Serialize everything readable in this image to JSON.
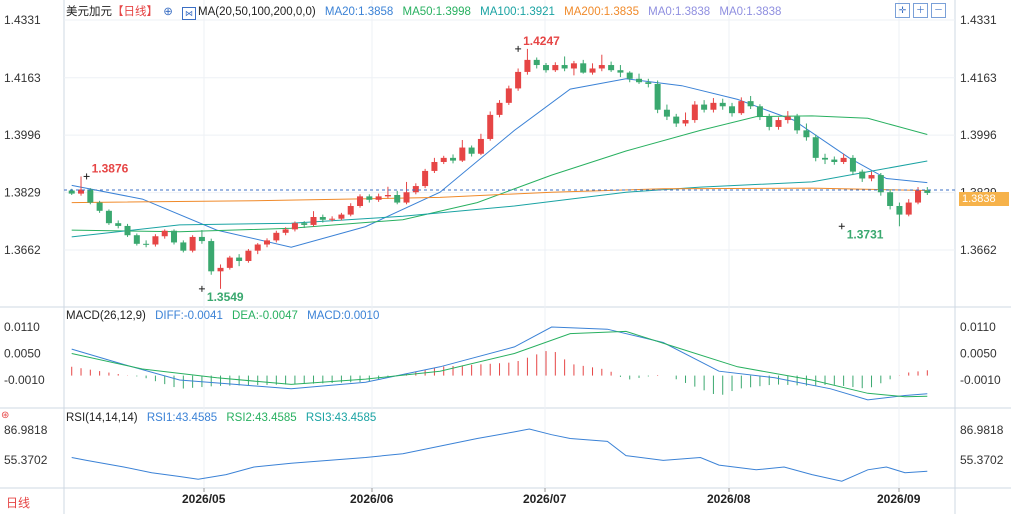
{
  "price_legend": {
    "symbol": "美元加元",
    "period": "【日线】",
    "ma_params": "MA(20,50,100,200,0,0)",
    "ma20": "MA20:1.3858",
    "ma50": "MA50:1.3998",
    "ma100": "MA100:1.3921",
    "ma200": "MA200:1.3835",
    "ma0a": "MA0:1.3838",
    "ma0b": "MA0:1.3838"
  },
  "macd_legend": {
    "label": "MACD(26,12,9)",
    "diff": "DIFF:-0.0041",
    "dea": "DEA:-0.0047",
    "macd": "MACD:0.0010"
  },
  "rsi_legend": {
    "label": "RSI(14,14,14)",
    "rsi1": "RSI1:43.4585",
    "rsi2": "RSI2:43.4585",
    "rsi3": "RSI3:43.4585"
  },
  "current_price": "1.3838",
  "period_tab": "日线",
  "colors": {
    "up": "#e64545",
    "down": "#3aa86f",
    "ma20": "#3b82d6",
    "ma50": "#28b060",
    "ma100": "#1aa3a3",
    "ma200": "#f08a2a",
    "diff": "#3b82d6",
    "dea": "#28b060",
    "legend_ma0": "#8f8fe0"
  },
  "chart_data": {
    "type": "candlestick",
    "x_tick_labels": [
      "2026/05",
      "2026/06",
      "2026/07",
      "2026/08",
      "2026/09"
    ],
    "price_axis": {
      "ticks": [
        "1.4331",
        "1.4163",
        "1.3996",
        "1.3829",
        "1.3662"
      ],
      "range": [
        1.355,
        1.433
      ]
    },
    "annotations": [
      {
        "label": "1.3876",
        "price": 1.3876,
        "kind": "high",
        "index": 10
      },
      {
        "label": "1.3549",
        "price": 1.3549,
        "kind": "low",
        "index": 72
      },
      {
        "label": "1.4247",
        "price": 1.4247,
        "kind": "high",
        "index": 242
      },
      {
        "label": "1.3731",
        "price": 1.3731,
        "kind": "low",
        "index": 416
      }
    ],
    "candle_x": [
      2,
      7,
      12,
      17,
      22,
      27,
      32,
      37,
      42,
      47,
      52,
      57,
      62,
      67,
      72,
      77,
      82,
      87,
      92,
      97,
      102,
      107,
      112,
      117,
      122,
      127,
      132,
      137,
      142,
      147,
      152,
      157,
      162,
      167,
      172,
      177,
      182,
      187,
      192,
      197,
      202,
      207,
      212,
      217,
      222,
      227,
      232,
      237,
      242,
      247,
      252,
      257,
      262,
      267,
      272,
      277,
      282,
      287,
      292,
      297,
      302,
      307,
      312,
      317,
      322,
      327,
      332,
      337,
      342,
      347,
      352,
      357,
      362,
      367,
      372,
      377,
      382,
      387,
      392,
      397,
      402,
      407,
      412,
      417,
      422,
      427,
      432,
      437,
      442,
      447,
      452,
      457,
      462
    ],
    "candles": [
      [
        1.3835,
        1.3826,
        1.384,
        1.3822
      ],
      [
        1.3826,
        1.3838,
        1.3876,
        1.382
      ],
      [
        1.3838,
        1.38,
        1.3842,
        1.3795
      ],
      [
        1.38,
        1.3776,
        1.3805,
        1.377
      ],
      [
        1.3776,
        1.374,
        1.378,
        1.3735
      ],
      [
        1.374,
        1.3732,
        1.3748,
        1.3725
      ],
      [
        1.3732,
        1.3705,
        1.3738,
        1.37
      ],
      [
        1.3705,
        1.368,
        1.371,
        1.3675
      ],
      [
        1.368,
        1.3678,
        1.369,
        1.367
      ],
      [
        1.3678,
        1.3702,
        1.3708,
        1.3672
      ],
      [
        1.3702,
        1.3718,
        1.3722,
        1.3695
      ],
      [
        1.3718,
        1.3684,
        1.3722,
        1.3678
      ],
      [
        1.3684,
        1.366,
        1.369,
        1.3655
      ],
      [
        1.366,
        1.37,
        1.3705,
        1.3655
      ],
      [
        1.37,
        1.3688,
        1.372,
        1.368
      ],
      [
        1.3688,
        1.36,
        1.3695,
        1.359
      ],
      [
        1.36,
        1.361,
        1.362,
        1.3549
      ],
      [
        1.361,
        1.364,
        1.3645,
        1.3605
      ],
      [
        1.364,
        1.363,
        1.365,
        1.3615
      ],
      [
        1.363,
        1.366,
        1.3665,
        1.3625
      ],
      [
        1.366,
        1.3678,
        1.3682,
        1.365
      ],
      [
        1.3678,
        1.369,
        1.3696,
        1.367
      ],
      [
        1.369,
        1.3712,
        1.3718,
        1.3684
      ],
      [
        1.3712,
        1.3722,
        1.3728,
        1.3705
      ],
      [
        1.3722,
        1.374,
        1.3745,
        1.3716
      ],
      [
        1.374,
        1.3735,
        1.3746,
        1.3726
      ],
      [
        1.3735,
        1.3758,
        1.3775,
        1.373
      ],
      [
        1.3758,
        1.375,
        1.3765,
        1.3742
      ],
      [
        1.375,
        1.3753,
        1.376,
        1.3745
      ],
      [
        1.3753,
        1.3765,
        1.377,
        1.3748
      ],
      [
        1.3765,
        1.379,
        1.3798,
        1.376
      ],
      [
        1.379,
        1.3818,
        1.3824,
        1.3785
      ],
      [
        1.3818,
        1.3808,
        1.3824,
        1.38
      ],
      [
        1.3808,
        1.3818,
        1.3826,
        1.3802
      ],
      [
        1.3818,
        1.3822,
        1.3846,
        1.3812
      ],
      [
        1.3822,
        1.38,
        1.3834,
        1.3795
      ],
      [
        1.38,
        1.383,
        1.386,
        1.3795
      ],
      [
        1.383,
        1.3848,
        1.3856,
        1.3824
      ],
      [
        1.3848,
        1.3892,
        1.3898,
        1.3842
      ],
      [
        1.3892,
        1.3918,
        1.393,
        1.3886
      ],
      [
        1.3918,
        1.393,
        1.3936,
        1.3912
      ],
      [
        1.393,
        1.3922,
        1.394,
        1.3914
      ],
      [
        1.3922,
        1.396,
        1.3982,
        1.3918
      ],
      [
        1.396,
        1.3942,
        1.3966,
        1.3934
      ],
      [
        1.3942,
        1.3985,
        1.4,
        1.3938
      ],
      [
        1.3985,
        1.4055,
        1.4065,
        1.398
      ],
      [
        1.4055,
        1.409,
        1.4098,
        1.4048
      ],
      [
        1.409,
        1.4132,
        1.414,
        1.4084
      ],
      [
        1.4132,
        1.418,
        1.419,
        1.4125
      ],
      [
        1.418,
        1.4215,
        1.4247,
        1.4172
      ],
      [
        1.4215,
        1.42,
        1.4222,
        1.419
      ],
      [
        1.42,
        1.4185,
        1.4206,
        1.4178
      ],
      [
        1.4185,
        1.42,
        1.4208,
        1.418
      ],
      [
        1.42,
        1.419,
        1.4225,
        1.4182
      ],
      [
        1.419,
        1.4205,
        1.4212,
        1.417
      ],
      [
        1.4205,
        1.4178,
        1.4215,
        1.4175
      ],
      [
        1.4178,
        1.419,
        1.4205,
        1.4172
      ],
      [
        1.419,
        1.42,
        1.423,
        1.4182
      ],
      [
        1.42,
        1.4185,
        1.421,
        1.418
      ],
      [
        1.4185,
        1.4178,
        1.42,
        1.4165
      ],
      [
        1.4178,
        1.416,
        1.4182,
        1.415
      ],
      [
        1.416,
        1.415,
        1.4175,
        1.4145
      ],
      [
        1.415,
        1.4145,
        1.416,
        1.4135
      ],
      [
        1.4145,
        1.407,
        1.4155,
        1.406
      ],
      [
        1.407,
        1.405,
        1.4085,
        1.404
      ],
      [
        1.405,
        1.403,
        1.4058,
        1.402
      ],
      [
        1.403,
        1.404,
        1.4062,
        1.4022
      ],
      [
        1.404,
        1.4085,
        1.4095,
        1.4032
      ],
      [
        1.4085,
        1.407,
        1.4098,
        1.4062
      ],
      [
        1.407,
        1.409,
        1.4104,
        1.4062
      ],
      [
        1.409,
        1.408,
        1.4102,
        1.407
      ],
      [
        1.408,
        1.406,
        1.409,
        1.405
      ],
      [
        1.406,
        1.4095,
        1.4106,
        1.4055
      ],
      [
        1.4095,
        1.408,
        1.411,
        1.4072
      ],
      [
        1.408,
        1.405,
        1.4086,
        1.404
      ],
      [
        1.405,
        1.402,
        1.4058,
        1.401
      ],
      [
        1.402,
        1.404,
        1.4048,
        1.4012
      ],
      [
        1.404,
        1.405,
        1.4066,
        1.403
      ],
      [
        1.405,
        1.401,
        1.4058,
        1.4
      ],
      [
        1.401,
        1.399,
        1.403,
        1.398
      ],
      [
        1.399,
        1.393,
        1.3998,
        1.392
      ],
      [
        1.393,
        1.3925,
        1.3942,
        1.3912
      ],
      [
        1.3925,
        1.3918,
        1.3934,
        1.391
      ],
      [
        1.3918,
        1.393,
        1.3942,
        1.3912
      ],
      [
        1.393,
        1.389,
        1.3938,
        1.388
      ],
      [
        1.389,
        1.387,
        1.3896,
        1.386
      ],
      [
        1.387,
        1.388,
        1.389,
        1.3862
      ],
      [
        1.388,
        1.383,
        1.3886,
        1.382
      ],
      [
        1.383,
        1.379,
        1.3838,
        1.378
      ],
      [
        1.379,
        1.3765,
        1.38,
        1.3731
      ],
      [
        1.3765,
        1.38,
        1.381,
        1.376
      ],
      [
        1.38,
        1.3835,
        1.3845,
        1.3795
      ],
      [
        1.3835,
        1.3828,
        1.3845,
        1.3822
      ]
    ],
    "ma_overlays_price_units": {
      "ma20": [
        [
          2,
          1.385
        ],
        [
          40,
          1.381
        ],
        [
          80,
          1.372
        ],
        [
          120,
          1.367
        ],
        [
          160,
          1.373
        ],
        [
          200,
          1.383
        ],
        [
          240,
          1.401
        ],
        [
          270,
          1.413
        ],
        [
          300,
          1.416
        ],
        [
          330,
          1.414
        ],
        [
          360,
          1.41
        ],
        [
          390,
          1.404
        ],
        [
          420,
          1.393
        ],
        [
          440,
          1.387
        ],
        [
          462,
          1.3858
        ]
      ],
      "ma50": [
        [
          2,
          1.372
        ],
        [
          60,
          1.3715
        ],
        [
          120,
          1.3725
        ],
        [
          180,
          1.375
        ],
        [
          220,
          1.38
        ],
        [
          260,
          1.388
        ],
        [
          300,
          1.395
        ],
        [
          340,
          1.401
        ],
        [
          370,
          1.405
        ],
        [
          400,
          1.4052
        ],
        [
          430,
          1.4045
        ],
        [
          462,
          1.3998
        ]
      ],
      "ma100": [
        [
          2,
          1.37
        ],
        [
          60,
          1.3735
        ],
        [
          120,
          1.374
        ],
        [
          180,
          1.376
        ],
        [
          240,
          1.379
        ],
        [
          300,
          1.383
        ],
        [
          340,
          1.3845
        ],
        [
          400,
          1.386
        ],
        [
          462,
          1.3921
        ]
      ],
      "ma200": [
        [
          2,
          1.38
        ],
        [
          100,
          1.3805
        ],
        [
          200,
          1.3815
        ],
        [
          260,
          1.383
        ],
        [
          320,
          1.384
        ],
        [
          400,
          1.3842
        ],
        [
          462,
          1.3835
        ]
      ]
    },
    "macd_axis": {
      "ticks": [
        "0.0110",
        "0.0050",
        "-0.0010"
      ],
      "range": [
        -0.004,
        0.013
      ]
    },
    "macd_series": {
      "diff": [
        [
          2,
          0.006
        ],
        [
          30,
          0.0025
        ],
        [
          60,
          -0.001
        ],
        [
          90,
          -0.002
        ],
        [
          120,
          -0.003
        ],
        [
          160,
          -0.0015
        ],
        [
          200,
          0.002
        ],
        [
          240,
          0.0065
        ],
        [
          260,
          0.011
        ],
        [
          290,
          0.0105
        ],
        [
          320,
          0.0075
        ],
        [
          350,
          0.001
        ],
        [
          380,
          -0.0005
        ],
        [
          410,
          -0.003
        ],
        [
          430,
          -0.0055
        ],
        [
          450,
          -0.0045
        ],
        [
          462,
          -0.0041
        ]
      ],
      "dea": [
        [
          2,
          0.005
        ],
        [
          40,
          0.0015
        ],
        [
          80,
          -0.0005
        ],
        [
          120,
          -0.002
        ],
        [
          160,
          -0.0008
        ],
        [
          200,
          0.001
        ],
        [
          240,
          0.005
        ],
        [
          270,
          0.0095
        ],
        [
          300,
          0.01
        ],
        [
          330,
          0.006
        ],
        [
          360,
          0.002
        ],
        [
          400,
          -0.001
        ],
        [
          430,
          -0.004
        ],
        [
          450,
          -0.0048
        ],
        [
          462,
          -0.0047
        ]
      ]
    },
    "rsi_axis": {
      "ticks": [
        "86.9818",
        "55.3702"
      ],
      "range": [
        25,
        100
      ]
    },
    "rsi_series": {
      "rsi1": [
        [
          2,
          58
        ],
        [
          10,
          55
        ],
        [
          30,
          48
        ],
        [
          45,
          42
        ],
        [
          60,
          38
        ],
        [
          70,
          35
        ],
        [
          85,
          40
        ],
        [
          100,
          48
        ],
        [
          120,
          52
        ],
        [
          140,
          55
        ],
        [
          160,
          58
        ],
        [
          180,
          62
        ],
        [
          200,
          70
        ],
        [
          220,
          78
        ],
        [
          240,
          85
        ],
        [
          248,
          88
        ],
        [
          260,
          82
        ],
        [
          270,
          78
        ],
        [
          290,
          75
        ],
        [
          300,
          60
        ],
        [
          320,
          55
        ],
        [
          340,
          58
        ],
        [
          350,
          50
        ],
        [
          370,
          45
        ],
        [
          385,
          48
        ],
        [
          400,
          40
        ],
        [
          416,
          33
        ],
        [
          430,
          45
        ],
        [
          440,
          48
        ],
        [
          450,
          42
        ],
        [
          462,
          43.46
        ]
      ]
    }
  }
}
